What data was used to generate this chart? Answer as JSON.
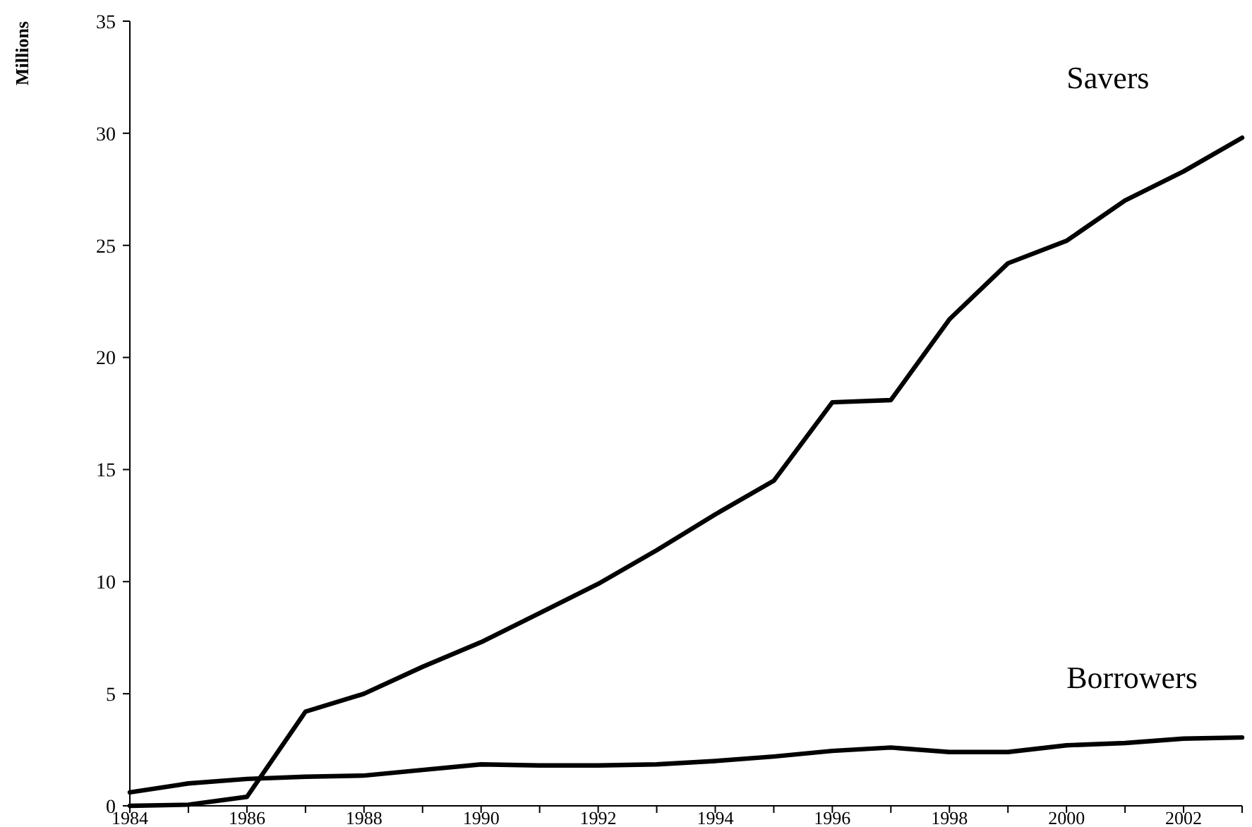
{
  "chart_data": {
    "type": "line",
    "ylabel": "Millions",
    "x": [
      1984,
      1985,
      1986,
      1987,
      1988,
      1989,
      1990,
      1991,
      1992,
      1993,
      1994,
      1995,
      1996,
      1997,
      1998,
      1999,
      2000,
      2001,
      2002,
      2003
    ],
    "series": [
      {
        "name": "Savers",
        "color": "#000000",
        "values": [
          0,
          0.05,
          0.4,
          4.2,
          5.0,
          6.2,
          7.3,
          8.6,
          9.9,
          11.4,
          13.0,
          14.5,
          18.0,
          18.1,
          21.7,
          24.2,
          25.2,
          27.0,
          28.3,
          29.8
        ]
      },
      {
        "name": "Borrowers",
        "color": "#000000",
        "values": [
          0.6,
          1.0,
          1.2,
          1.3,
          1.35,
          1.6,
          1.85,
          1.8,
          1.8,
          1.85,
          2.0,
          2.2,
          2.45,
          2.6,
          2.4,
          2.4,
          2.7,
          2.8,
          3.0,
          3.05
        ]
      }
    ],
    "xlim": [
      1984,
      2003
    ],
    "xticks": [
      1984,
      {
        "value": 1985,
        "label": null
      },
      1986,
      {
        "value": 1987,
        "label": null
      },
      1988,
      {
        "value": 1989,
        "label": null
      },
      1990,
      {
        "value": 1991,
        "label": null
      },
      1992,
      {
        "value": 1993,
        "label": null
      },
      1994,
      {
        "value": 1995,
        "label": null
      },
      1996,
      {
        "value": 1997,
        "label": null
      },
      1998,
      {
        "value": 1999,
        "label": null
      },
      2000,
      {
        "value": 2001,
        "label": null
      },
      2002,
      {
        "value": 2003,
        "label": null
      }
    ],
    "ylim": [
      0,
      35
    ],
    "yticks": [
      0,
      5,
      10,
      15,
      20,
      25,
      30,
      35
    ],
    "grid": false,
    "legend": false,
    "marker": "none",
    "line_style": "solid"
  }
}
